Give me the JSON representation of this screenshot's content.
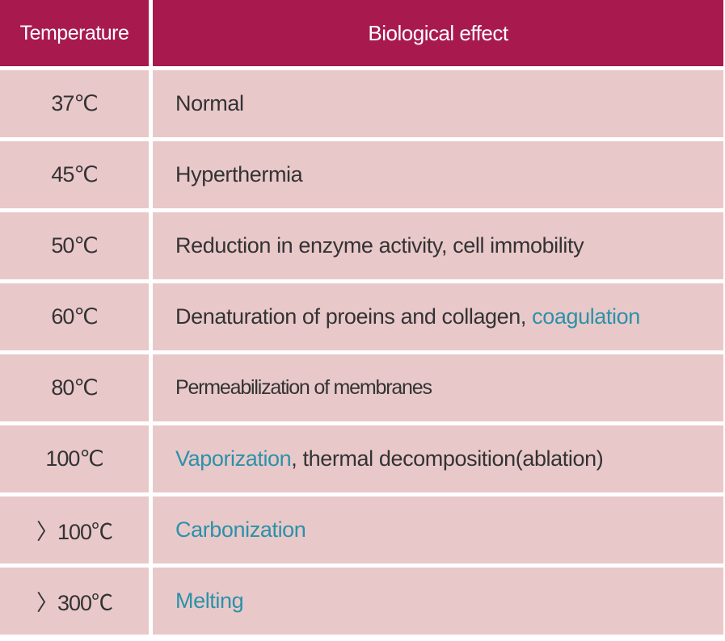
{
  "colors": {
    "header_bg": "#a81a4e",
    "row_bg": "#e9c8ca",
    "text": "#333333",
    "highlight": "#2a92a8"
  },
  "table": {
    "header": {
      "temperature": "Temperature",
      "effect": "Biological effect"
    },
    "rows": [
      {
        "temperature": "37℃",
        "effect_pre": "Normal",
        "effect_hl": "",
        "effect_post": ""
      },
      {
        "temperature": "45℃",
        "effect_pre": "Hyperthermia",
        "effect_hl": "",
        "effect_post": ""
      },
      {
        "temperature": "50℃",
        "effect_pre": "Reduction in enzyme activity, cell immobility",
        "effect_hl": "",
        "effect_post": ""
      },
      {
        "temperature": "60℃",
        "effect_pre": "Denaturation of proeins and collagen, ",
        "effect_hl": "coagulation",
        "effect_post": ""
      },
      {
        "temperature": "80℃",
        "effect_pre": "Permeabilization of membranes",
        "effect_hl": "",
        "effect_post": ""
      },
      {
        "temperature": "100℃",
        "effect_pre": "",
        "effect_hl": "Vaporization",
        "effect_post": ", thermal decomposition(ablation)"
      },
      {
        "temperature": "〉100℃",
        "effect_pre": "",
        "effect_hl": "Carbonization",
        "effect_post": ""
      },
      {
        "temperature": "〉300℃",
        "effect_pre": "",
        "effect_hl": "Melting",
        "effect_post": ""
      }
    ]
  }
}
